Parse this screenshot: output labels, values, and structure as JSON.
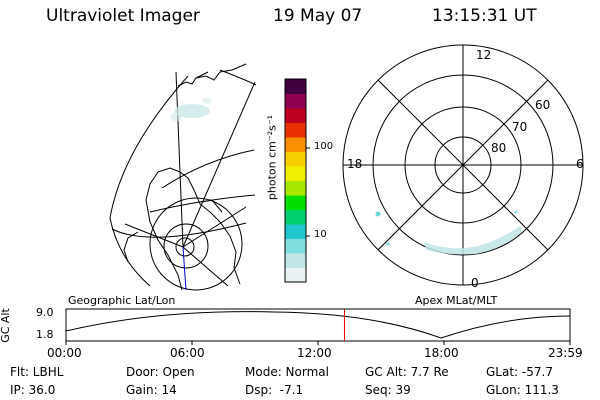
{
  "header": {
    "title": "Ultraviolet Imager",
    "date": "19 May 07",
    "time": "13:15:31 UT"
  },
  "colorbar": {
    "unit_label": "photon cm⁻²s⁻¹",
    "ticks": [
      "100",
      "10"
    ],
    "colors": [
      "#e8f2f2",
      "#c0e6e6",
      "#7fdede",
      "#22c8d0",
      "#00d070",
      "#00e000",
      "#a8e800",
      "#f0f000",
      "#f8d000",
      "#f89000",
      "#e83000",
      "#c00020",
      "#900050",
      "#400040"
    ]
  },
  "left_panel_label": "Geographic Lat/Lon",
  "right_panel": {
    "label": "Apex MLat/MLT",
    "mlt_labels": {
      "top": "12",
      "bottom": "0",
      "left": "18",
      "right": "6"
    },
    "lat_labels": [
      "60",
      "70",
      "80"
    ]
  },
  "altitude_plot": {
    "ylabel": "GC Alt",
    "ytick_top": "9.0",
    "ytick_bottom": "1.8",
    "xticks": [
      "00:00",
      "06:00",
      "12:00",
      "18:00",
      "23:59"
    ],
    "current_time_fraction": 0.5525,
    "marker_color": "#e00000"
  },
  "footer": {
    "filter": "Flt: LBHL",
    "ip": "IP: 36.0",
    "door": "Door: Open",
    "gain": "Gain: 14",
    "mode": "Mode: Normal",
    "dsp": "Dsp:  -7.1",
    "gc_alt": "GC Alt: 7.7 Re",
    "seq": "Seq: 39",
    "glat": "GLat: -57.7",
    "glon": "GLon: 111.3"
  }
}
